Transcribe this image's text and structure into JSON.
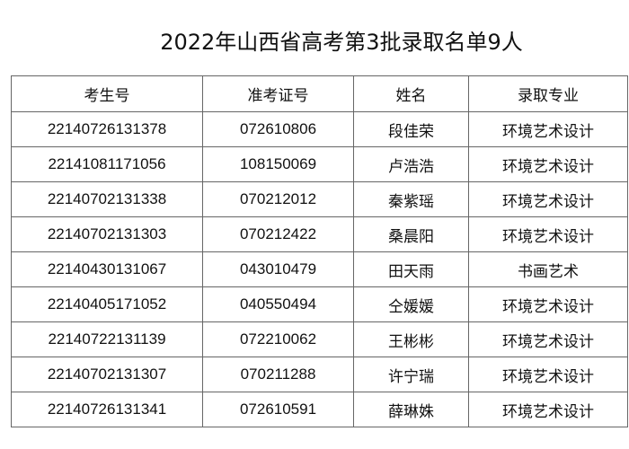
{
  "title": "2022年山西省高考第3批录取名单9人",
  "table": {
    "headers": [
      "考生号",
      "准考证号",
      "姓名",
      "录取专业"
    ],
    "rows": [
      [
        "22140726131378",
        "072610806",
        "段佳荣",
        "环境艺术设计"
      ],
      [
        "22141081171056",
        "108150069",
        "卢浩浩",
        "环境艺术设计"
      ],
      [
        "22140702131338",
        "070212012",
        "秦紫瑶",
        "环境艺术设计"
      ],
      [
        "22140702131303",
        "070212422",
        "桑晨阳",
        "环境艺术设计"
      ],
      [
        "22140430131067",
        "043010479",
        "田天雨",
        "书画艺术"
      ],
      [
        "22140405171052",
        "040550494",
        "仝媛媛",
        "环境艺术设计"
      ],
      [
        "22140722131139",
        "072210062",
        "王彬彬",
        "环境艺术设计"
      ],
      [
        "22140702131307",
        "070211288",
        "许宁瑞",
        "环境艺术设计"
      ],
      [
        "22140726131341",
        "072610591",
        "薛琳姝",
        "环境艺术设计"
      ]
    ]
  }
}
